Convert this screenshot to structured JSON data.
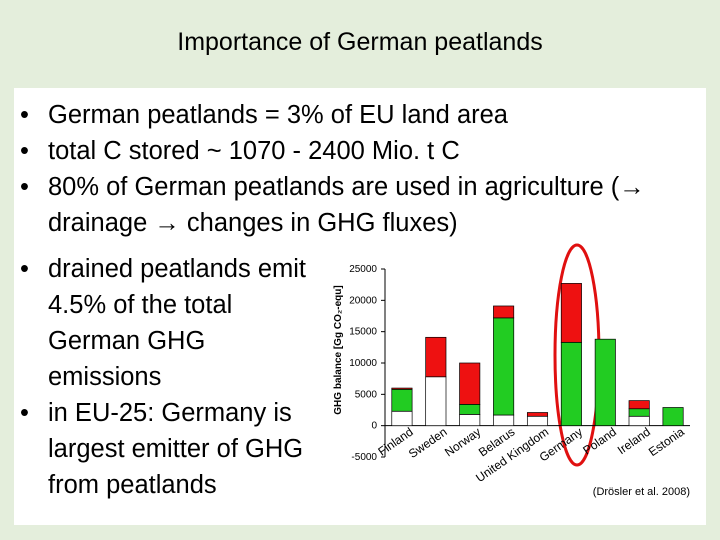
{
  "header": {
    "title": "Importance of German peatlands"
  },
  "bullets": [
    "German peatlands = 3% of EU land area",
    "total C stored ~ 1070 - 2400 Mio. t C",
    "80% of German peatlands are used in agriculture (→ drainage → changes in GHG fluxes)",
    "drained peatlands emit 4.5% of the total German GHG emissions",
    "in EU-25: Germany is largest emitter of GHG from peatlands"
  ],
  "source": "(Drösler et al. 2008)",
  "chart_data": {
    "type": "stacked-bar",
    "y_label": "GHG balance [Gg CO₂-equ]",
    "categories": [
      "Finland",
      "Sweden",
      "Norway",
      "Belarus",
      "United Kingdom",
      "Germany",
      "Poland",
      "Ireland",
      "Estonia"
    ],
    "series": [
      {
        "color": "#ffffff",
        "values": [
          2300,
          7800,
          1800,
          1700,
          1500,
          0,
          0,
          1500,
          0
        ]
      },
      {
        "color": "#22cc22",
        "values": [
          3500,
          0,
          1600,
          15500,
          0,
          13300,
          13800,
          1200,
          2900
        ]
      },
      {
        "color": "#ee1111",
        "values": [
          200,
          6300,
          6600,
          1900,
          600,
          9400,
          0,
          1300,
          0
        ]
      }
    ],
    "ylim": [
      -5000,
      25000
    ],
    "yticks": [
      -5000,
      0,
      5000,
      10000,
      15000,
      20000,
      25000
    ]
  }
}
